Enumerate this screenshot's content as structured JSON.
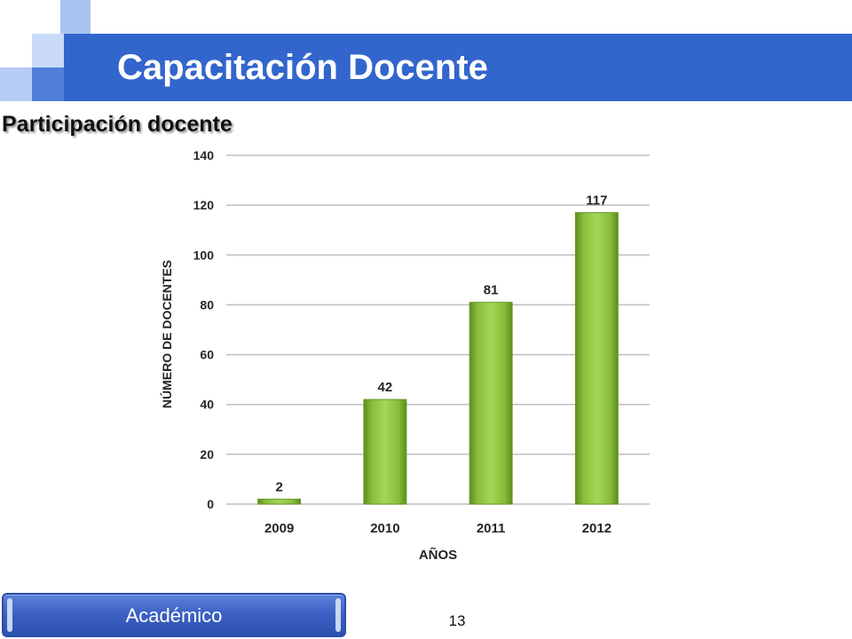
{
  "slide": {
    "title": "Capacitación Docente",
    "subtitle": "Participación docente",
    "footer_label": "Académico",
    "page_number": "13",
    "colors": {
      "title_bar": "#3366cc",
      "bar_fill": "#8dc63f",
      "footer": "#3d62c4"
    }
  },
  "chart_data": {
    "type": "bar",
    "categories": [
      "2009",
      "2010",
      "2011",
      "2012"
    ],
    "values": [
      2,
      42,
      81,
      117
    ],
    "data_labels": [
      "2",
      "42",
      "81",
      "117"
    ],
    "y_ticks": [
      "0",
      "20",
      "40",
      "60",
      "80",
      "100",
      "120",
      "140"
    ],
    "title": "",
    "xlabel": "AÑOS",
    "ylabel": "NÚMERO DE DOCENTES",
    "ylim": [
      0,
      140
    ],
    "grid": true,
    "legend": "none"
  }
}
